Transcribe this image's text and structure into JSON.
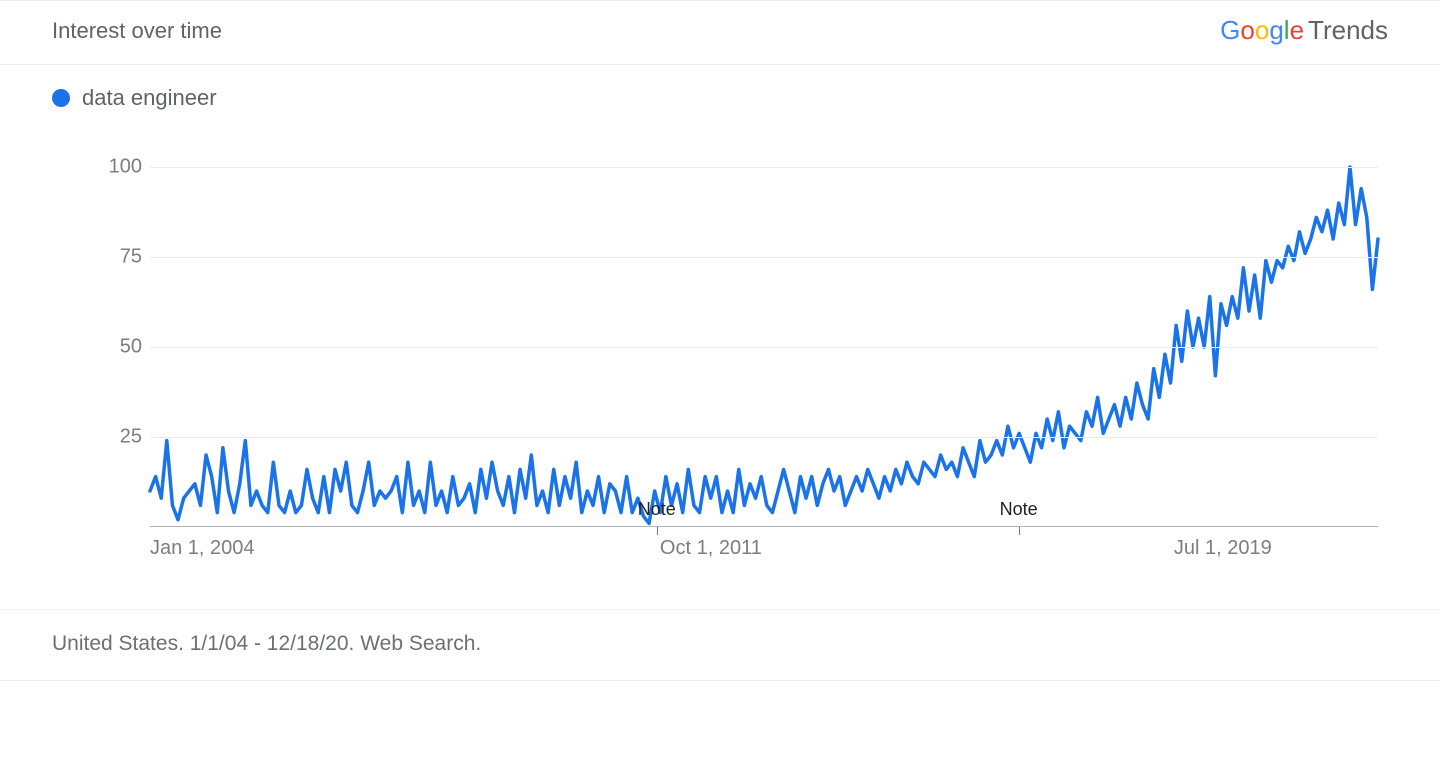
{
  "header": {
    "title": "Interest over time",
    "brand_trends": "Trends"
  },
  "legend": {
    "dot_color": "#1a73e8",
    "label": "data engineer"
  },
  "footer": {
    "text": "United States. 1/1/04 - 12/18/20. Web Search."
  },
  "chart": {
    "type": "line",
    "line_color": "#1a73e8",
    "line_width": 3.5,
    "background_color": "#ffffff",
    "grid_color": "#ebebeb",
    "axis_color": "#b5b5b5",
    "label_color": "#7d7d7d",
    "label_fontsize": 20,
    "ylim": [
      0,
      100
    ],
    "yticks": [
      25,
      50,
      75,
      100
    ],
    "x_start": "2004-01-01",
    "x_end": "2020-12-18",
    "x_ticks": [
      {
        "date": "2004-01-01",
        "label": "Jan 1, 2004",
        "align": "left"
      },
      {
        "date": "2011-10-01",
        "label": "Oct 1, 2011",
        "align": "center"
      },
      {
        "date": "2019-07-01",
        "label": "Jul 1, 2019",
        "align": "right"
      }
    ],
    "notes": [
      {
        "date": "2011-01-01",
        "label": "Note"
      },
      {
        "date": "2016-01-01",
        "label": "Note"
      }
    ],
    "values": [
      10,
      14,
      8,
      24,
      6,
      2,
      8,
      10,
      12,
      6,
      20,
      14,
      4,
      22,
      10,
      4,
      12,
      24,
      6,
      10,
      6,
      4,
      18,
      6,
      4,
      10,
      4,
      6,
      16,
      8,
      4,
      14,
      4,
      16,
      10,
      18,
      6,
      4,
      10,
      18,
      6,
      10,
      8,
      10,
      14,
      4,
      18,
      6,
      10,
      4,
      18,
      6,
      10,
      4,
      14,
      6,
      8,
      12,
      4,
      16,
      8,
      18,
      10,
      6,
      14,
      4,
      16,
      8,
      20,
      6,
      10,
      4,
      16,
      6,
      14,
      8,
      18,
      4,
      10,
      6,
      14,
      4,
      12,
      10,
      4,
      14,
      4,
      8,
      3,
      1,
      10,
      4,
      14,
      6,
      12,
      4,
      16,
      6,
      4,
      14,
      8,
      14,
      4,
      10,
      4,
      16,
      6,
      12,
      8,
      14,
      6,
      4,
      10,
      16,
      10,
      4,
      14,
      8,
      14,
      6,
      12,
      16,
      10,
      14,
      6,
      10,
      14,
      10,
      16,
      12,
      8,
      14,
      10,
      16,
      12,
      18,
      14,
      12,
      18,
      16,
      14,
      20,
      16,
      18,
      14,
      22,
      18,
      14,
      24,
      18,
      20,
      24,
      20,
      28,
      22,
      26,
      22,
      18,
      26,
      22,
      30,
      24,
      32,
      22,
      28,
      26,
      24,
      32,
      28,
      36,
      26,
      30,
      34,
      28,
      36,
      30,
      40,
      34,
      30,
      44,
      36,
      48,
      40,
      56,
      46,
      60,
      50,
      58,
      50,
      64,
      42,
      62,
      56,
      64,
      58,
      72,
      60,
      70,
      58,
      74,
      68,
      74,
      72,
      78,
      74,
      82,
      76,
      80,
      86,
      82,
      88,
      80,
      90,
      84,
      100,
      84,
      94,
      86,
      66,
      80
    ]
  }
}
